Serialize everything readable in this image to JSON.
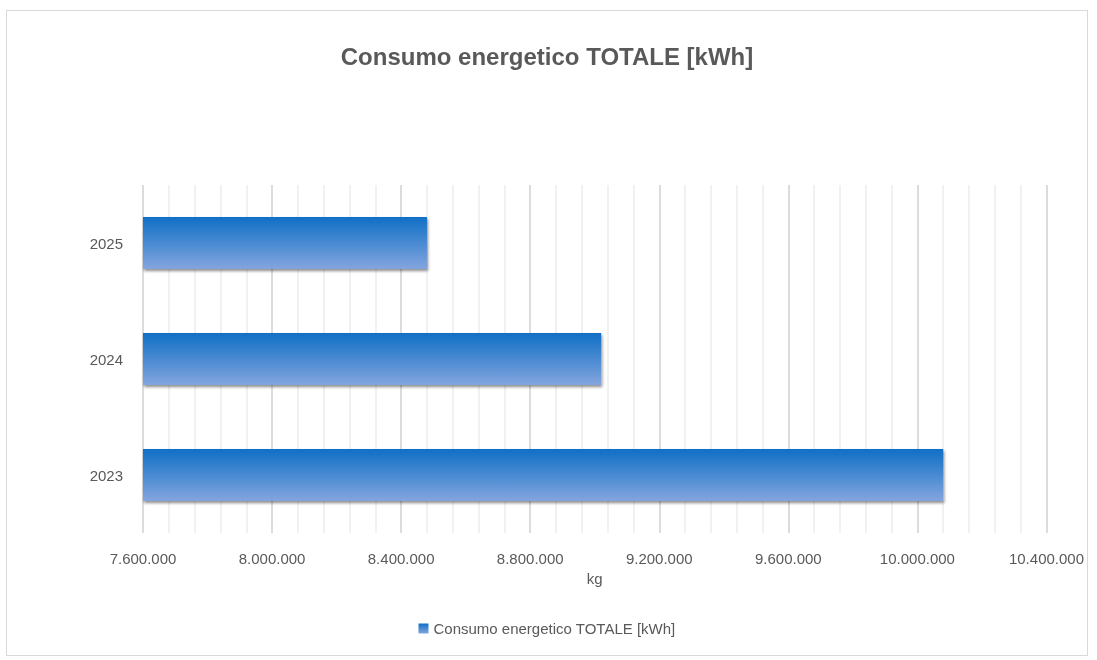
{
  "chart_data": {
    "type": "bar",
    "orientation": "horizontal",
    "title": "Consumo energetico TOTALE [kWh]",
    "xlabel": "kg",
    "categories": [
      "2025",
      "2024",
      "2023"
    ],
    "series": [
      {
        "name": "Consumo energetico TOTALE [kWh]",
        "color": "#0f6fc6",
        "values": [
          8480000,
          9020000,
          10080000
        ]
      }
    ],
    "xlim": [
      7600000,
      10400000
    ],
    "xticks": [
      {
        "value": 7600000,
        "label": "7.600.000"
      },
      {
        "value": 8000000,
        "label": "8.000.000"
      },
      {
        "value": 8400000,
        "label": "8.400.000"
      },
      {
        "value": 8800000,
        "label": "8.800.000"
      },
      {
        "value": 9200000,
        "label": "9.200.000"
      },
      {
        "value": 9600000,
        "label": "9.600.000"
      },
      {
        "value": 10000000,
        "label": "10.000.000"
      },
      {
        "value": 10400000,
        "label": "10.400.000"
      }
    ],
    "grid": "x",
    "legend": "bottom"
  }
}
